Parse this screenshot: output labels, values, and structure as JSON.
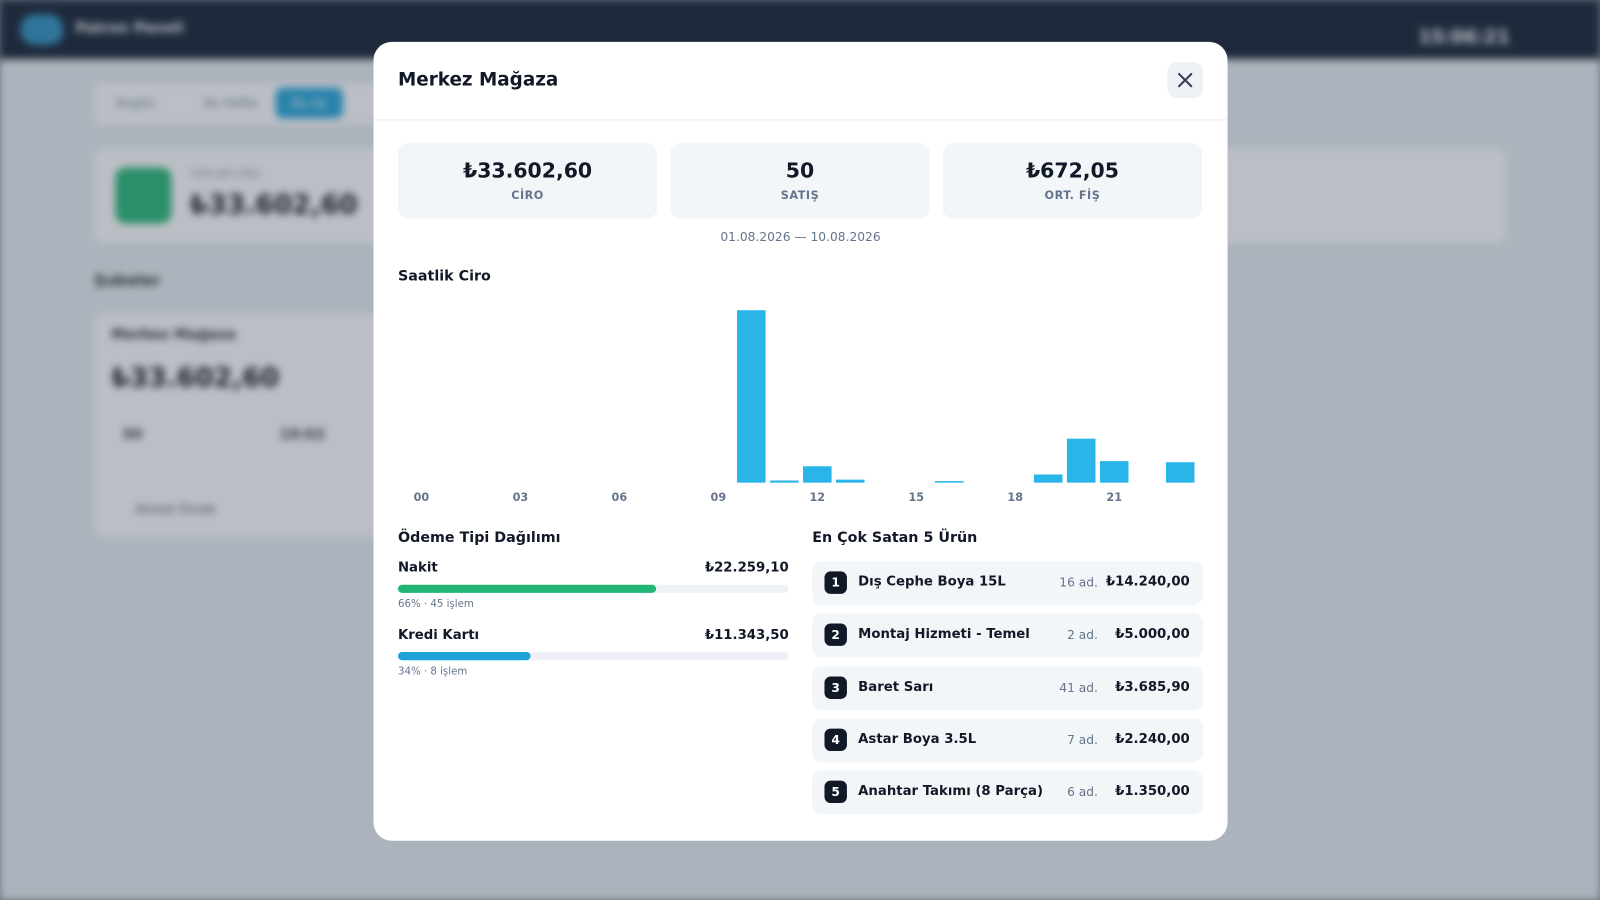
{
  "background": {
    "app_name": "Patron Paneli",
    "clock": "15:06:21",
    "tabs": [
      "Bugün",
      "Bu Hafta",
      "Bu Ay"
    ],
    "total_label": "TOPLAM CİRO",
    "total_value": "₺33.602,60",
    "section_title": "Şubeler",
    "branch_name": "Merkez Mağaza",
    "branch_value": "₺33.602,60",
    "branch_sales": "50",
    "branch_last": "19:02",
    "branch_manager": "Ahmet Örnek"
  },
  "modal": {
    "title": "Merkez Mağaza",
    "stats": [
      {
        "value": "₺33.602,60",
        "label": "CİRO"
      },
      {
        "value": "50",
        "label": "SATIŞ"
      },
      {
        "value": "₺672,05",
        "label": "ORT. FİŞ"
      }
    ],
    "date_range": "01.08.2026 — 10.08.2026"
  },
  "chart_data": {
    "type": "bar",
    "title": "Saatlik Ciro",
    "categories": [
      "00",
      null,
      null,
      "03",
      null,
      null,
      "06",
      null,
      null,
      "09",
      null,
      null,
      "12",
      null,
      null,
      "15",
      null,
      null,
      "18",
      null,
      null,
      "21",
      null,
      null
    ],
    "values": [
      0,
      0,
      0,
      0,
      0,
      0,
      0,
      0,
      0,
      0,
      20000,
      250,
      1900,
      350,
      0,
      0,
      180,
      0,
      0,
      950,
      5100,
      2500,
      0,
      2370
    ],
    "color": "#29b5e8",
    "grid": false
  },
  "payments": {
    "title": "Ödeme Tipi Dağılımı",
    "items": [
      {
        "name": "Nakit",
        "amount": "₺22.259,10",
        "share": 66,
        "share_label": "66% · 45 işlem",
        "color": "#22b573"
      },
      {
        "name": "Kredi Kartı",
        "amount": "₺11.343,50",
        "share": 34,
        "share_label": "34% · 8 işlem",
        "color": "#1fa2d8"
      }
    ]
  },
  "products": {
    "title": "En Çok Satan 5 Ürün",
    "items": [
      {
        "rank": "1",
        "name": "Dış Cephe Boya 15L",
        "qty": "16 ad.",
        "amount": "₺14.240,00"
      },
      {
        "rank": "2",
        "name": "Montaj Hizmeti - Temel",
        "qty": "2 ad.",
        "amount": "₺5.000,00"
      },
      {
        "rank": "3",
        "name": "Baret Sarı",
        "qty": "41 ad.",
        "amount": "₺3.685,90"
      },
      {
        "rank": "4",
        "name": "Astar Boya 3.5L",
        "qty": "7 ad.",
        "amount": "₺2.240,00"
      },
      {
        "rank": "5",
        "name": "Anahtar Takımı (8 Parça)",
        "qty": "6 ad.",
        "amount": "₺1.350,00"
      }
    ]
  }
}
